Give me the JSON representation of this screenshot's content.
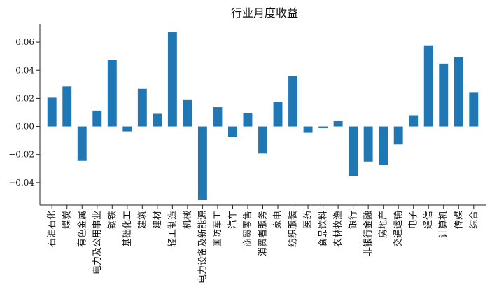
{
  "chart_data": {
    "type": "bar",
    "title": "行业月度收益",
    "xlabel": "",
    "ylabel": "",
    "ylim": [
      -0.056,
      0.073
    ],
    "yticks": [
      -0.04,
      -0.02,
      0.0,
      0.02,
      0.04,
      0.06
    ],
    "ytick_labels": [
      "−0.04",
      "−0.02",
      "0.00",
      "0.02",
      "0.04",
      "0.06"
    ],
    "bar_color": "#1f77b4",
    "grid": false,
    "categories": [
      "石油石化",
      "煤炭",
      "有色金属",
      "电力及公用事业",
      "钢铁",
      "基础化工",
      "建筑",
      "建材",
      "轻工制造",
      "机械",
      "电力设备及新能源",
      "国防军工",
      "汽车",
      "商贸零售",
      "消费者服务",
      "家电",
      "纺织服装",
      "医药",
      "食品饮料",
      "农林牧渔",
      "银行",
      "非银行金融",
      "房地产",
      "交通运输",
      "电子",
      "通信",
      "计算机",
      "传媒",
      "综合"
    ],
    "values": [
      0.0205,
      0.0285,
      -0.0245,
      0.0113,
      0.0475,
      -0.0035,
      0.0268,
      0.009,
      0.067,
      0.0188,
      -0.052,
      0.0137,
      -0.0072,
      0.0093,
      -0.0193,
      0.0175,
      0.0358,
      -0.0045,
      -0.0012,
      0.0038,
      -0.0355,
      -0.025,
      -0.0275,
      -0.0128,
      0.008,
      0.0577,
      0.0447,
      0.0495,
      0.024
    ]
  }
}
